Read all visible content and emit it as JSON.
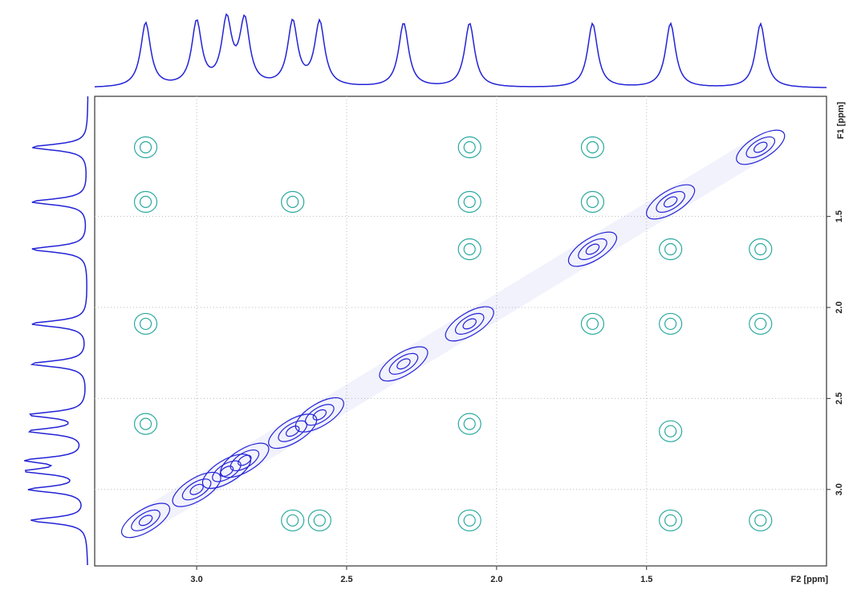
{
  "chart_data": {
    "type": "nmr2d",
    "xlabel": "F2 [ppm]",
    "ylabel": "F1 [ppm]",
    "xlim": [
      3.34,
      0.9
    ],
    "ylim": [
      0.84,
      3.42
    ],
    "xticks": [
      {
        "value": 3,
        "label": "3.0"
      },
      2.5,
      {
        "value": 2,
        "label": "2.0"
      },
      1.5
    ],
    "yticks": [
      1.5,
      {
        "value": 2,
        "label": "2.0"
      },
      2.5,
      {
        "value": 3,
        "label": "3.0"
      }
    ],
    "grid": true,
    "diagonal": {
      "color": "#2323d6",
      "values": [
        3.17,
        3.0,
        2.9,
        2.84,
        2.68,
        2.59,
        2.31,
        2.09,
        1.68,
        1.42,
        1.12
      ]
    },
    "cross_peaks": {
      "color": "#2aa9a0",
      "x": [
        3.17,
        3.17,
        3.17,
        3.17,
        2.68,
        2.68,
        2.59,
        2.09,
        2.09,
        2.09,
        2.09,
        2.09,
        1.68,
        1.68,
        1.68,
        1.42,
        1.42,
        1.42,
        1.42,
        1.12,
        1.12,
        1.12
      ],
      "y": [
        1.12,
        1.42,
        2.09,
        2.64,
        1.42,
        3.17,
        3.17,
        1.12,
        1.42,
        1.68,
        2.64,
        3.17,
        1.12,
        1.42,
        2.09,
        1.68,
        2.09,
        2.68,
        3.17,
        1.68,
        2.09,
        3.17
      ]
    }
  }
}
